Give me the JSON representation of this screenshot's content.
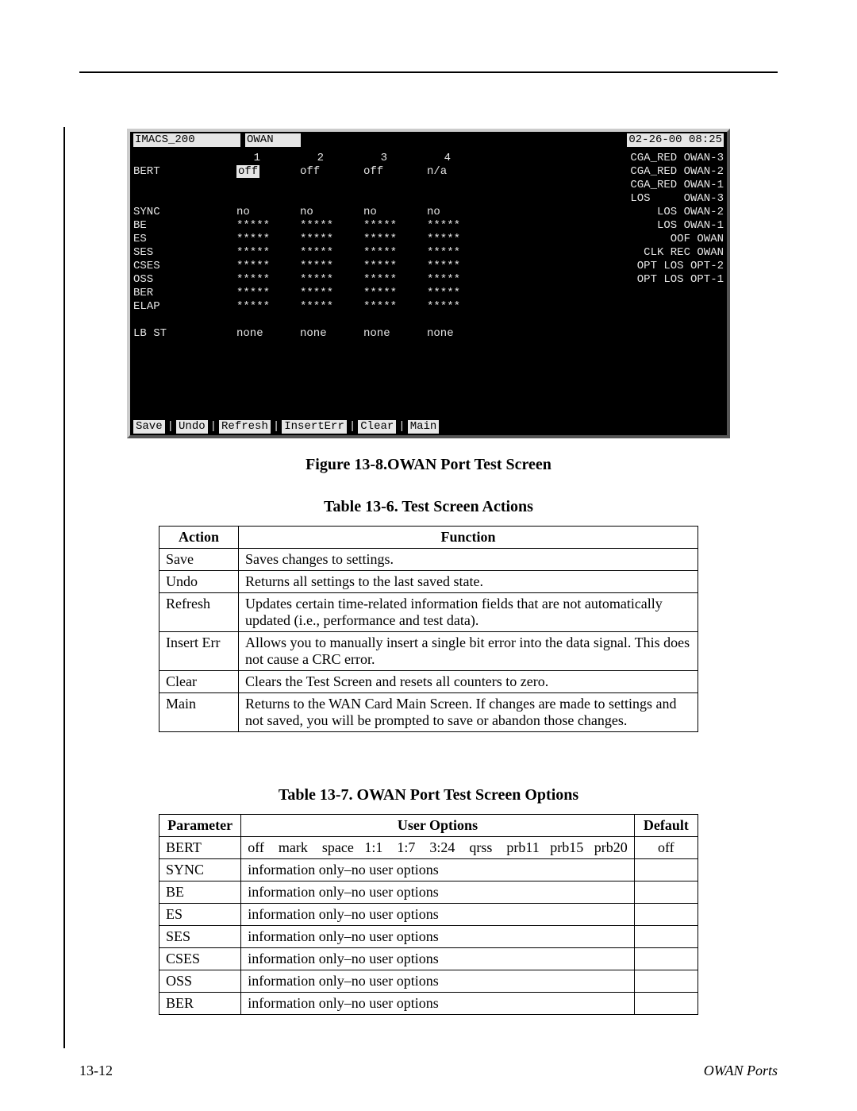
{
  "terminal": {
    "header": {
      "left": "IMACS_200",
      "mid": "OWAN",
      "right": "02-26-00 08:25"
    },
    "port_nums": [
      "1",
      "2",
      "3",
      "4"
    ],
    "bert_label": "BERT",
    "bert_values": [
      "off",
      "off",
      "off",
      "n/a"
    ],
    "rows": [
      {
        "label": "SYNC",
        "v": [
          "no",
          "no",
          "no",
          "no"
        ]
      },
      {
        "label": "BE",
        "v": [
          "*****",
          "*****",
          "*****",
          "*****"
        ]
      },
      {
        "label": "ES",
        "v": [
          "*****",
          "*****",
          "*****",
          "*****"
        ]
      },
      {
        "label": "SES",
        "v": [
          "*****",
          "*****",
          "*****",
          "*****"
        ]
      },
      {
        "label": "CSES",
        "v": [
          "*****",
          "*****",
          "*****",
          "*****"
        ]
      },
      {
        "label": "OSS",
        "v": [
          "*****",
          "*****",
          "*****",
          "*****"
        ]
      },
      {
        "label": "BER",
        "v": [
          "*****",
          "*****",
          "*****",
          "*****"
        ]
      },
      {
        "label": "ELAP",
        "v": [
          "*****",
          "*****",
          "*****",
          "*****"
        ]
      }
    ],
    "lbst": {
      "label": "LB ST",
      "v": [
        "none",
        "none",
        "none",
        "none"
      ]
    },
    "status": [
      {
        "l": "CGA_RED",
        "r": "OWAN-3"
      },
      {
        "l": "CGA_RED",
        "r": "OWAN-2"
      },
      {
        "l": "CGA_RED",
        "r": "OWAN-1"
      },
      {
        "l": "LOS",
        "r": "OWAN-3"
      },
      {
        "l": "LOS",
        "r": "OWAN-2"
      },
      {
        "l": "LOS",
        "r": "OWAN-1"
      },
      {
        "l": "OOF",
        "r": "OWAN"
      },
      {
        "l": "CLK REC",
        "r": "OWAN"
      },
      {
        "l": "OPT LOS",
        "r": "OPT-2"
      },
      {
        "l": "OPT LOS",
        "r": "OPT-1"
      }
    ],
    "footer": [
      "Save",
      "Undo",
      "Refresh",
      "InsertErr",
      "Clear",
      "Main"
    ]
  },
  "captions": {
    "fig": "Figure 13-8.OWAN Port Test Screen",
    "t6": "Table 13-6. Test Screen Actions",
    "t7": "Table 13-7. OWAN Port Test Screen Options"
  },
  "t6": {
    "head": [
      "Action",
      "Function"
    ],
    "rows": [
      [
        "Save",
        "Saves changes to settings."
      ],
      [
        "Undo",
        "Returns all settings to the last saved state."
      ],
      [
        "Refresh",
        "Updates certain time-related information fields that are not automatically updated (i.e., performance and test data)."
      ],
      [
        "Insert Err",
        "Allows you to manually insert a single bit error into the data signal. This does not cause a CRC error."
      ],
      [
        "Clear",
        "Clears the Test Screen and resets all counters to zero."
      ],
      [
        "Main",
        "Returns to the WAN Card Main Screen. If changes are made to settings and not saved, you will be prompted to save or abandon those changes."
      ]
    ]
  },
  "t7": {
    "head": [
      "Parameter",
      "User Options",
      "Default"
    ],
    "rows": [
      [
        "BERT",
        "off    mark    space   1:1    1:7    3:24    qrss    prb11   prb15   prb20",
        "off"
      ],
      [
        "SYNC",
        "information only–no user options",
        ""
      ],
      [
        "BE",
        "information only–no user options",
        ""
      ],
      [
        "ES",
        "information only–no user options",
        ""
      ],
      [
        "SES",
        "information only–no user options",
        ""
      ],
      [
        "CSES",
        "information only–no user options",
        ""
      ],
      [
        "OSS",
        "information only–no user options",
        ""
      ],
      [
        "BER",
        "information only–no user options",
        ""
      ]
    ]
  },
  "footer": {
    "left": "13-12",
    "right": "OWAN Ports"
  }
}
